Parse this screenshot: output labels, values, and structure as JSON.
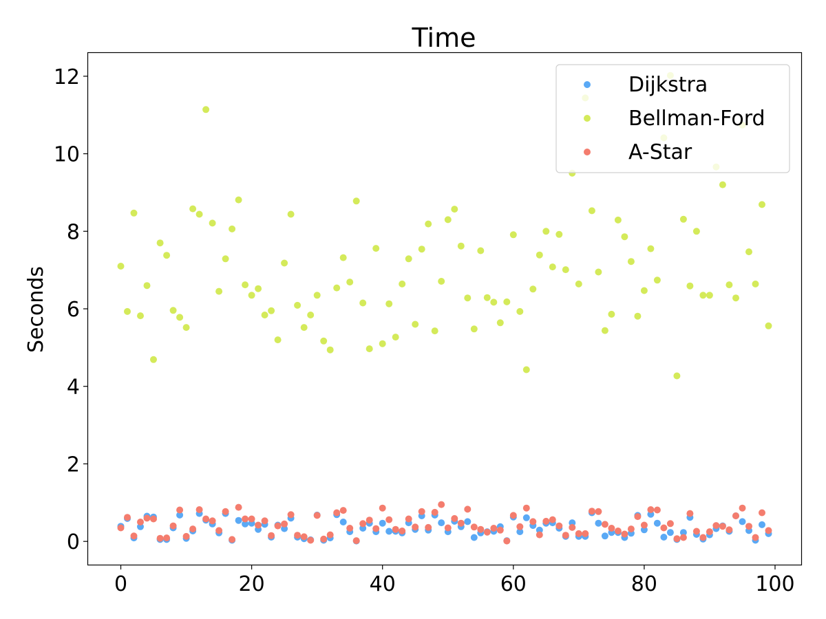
{
  "chart_data": {
    "type": "scatter",
    "title": "Time",
    "xlabel": "",
    "ylabel": "Seconds",
    "xlim": [
      -5.0,
      104.0
    ],
    "ylim": [
      -0.6,
      12.6
    ],
    "xticks": [
      0,
      20,
      40,
      60,
      80,
      100
    ],
    "yticks": [
      0,
      2,
      4,
      6,
      8,
      10,
      12
    ],
    "grid": false,
    "legend_position": "top-right",
    "x": [
      0,
      1,
      2,
      3,
      4,
      5,
      6,
      7,
      8,
      9,
      10,
      11,
      12,
      13,
      14,
      15,
      16,
      17,
      18,
      19,
      20,
      21,
      22,
      23,
      24,
      25,
      26,
      27,
      28,
      29,
      30,
      31,
      32,
      33,
      34,
      35,
      36,
      37,
      38,
      39,
      40,
      41,
      42,
      43,
      44,
      45,
      46,
      47,
      48,
      49,
      50,
      51,
      52,
      53,
      54,
      55,
      56,
      57,
      58,
      59,
      60,
      61,
      62,
      63,
      64,
      65,
      66,
      67,
      68,
      69,
      70,
      71,
      72,
      73,
      74,
      75,
      76,
      77,
      78,
      79,
      80,
      81,
      82,
      83,
      84,
      85,
      86,
      87,
      88,
      89,
      90,
      91,
      92,
      93,
      94,
      95,
      96,
      97,
      98,
      99
    ],
    "series": [
      {
        "name": "Dijkstra",
        "color": "#5aa9f5",
        "values": [
          0.39,
          0.59,
          0.09,
          0.38,
          0.65,
          0.63,
          0.05,
          0.05,
          0.35,
          0.68,
          0.08,
          0.27,
          0.72,
          0.55,
          0.45,
          0.22,
          0.72,
          0.03,
          0.54,
          0.45,
          0.47,
          0.31,
          0.44,
          0.11,
          0.42,
          0.33,
          0.6,
          0.11,
          0.07,
          0.04,
          0.68,
          0.03,
          0.09,
          0.69,
          0.5,
          0.25,
          0.01,
          0.34,
          0.47,
          0.25,
          0.47,
          0.26,
          0.26,
          0.22,
          0.48,
          0.31,
          0.66,
          0.29,
          0.68,
          0.48,
          0.25,
          0.52,
          0.38,
          0.51,
          0.1,
          0.22,
          0.25,
          0.26,
          0.38,
          0.02,
          0.63,
          0.25,
          0.61,
          0.41,
          0.29,
          0.47,
          0.48,
          0.34,
          0.13,
          0.48,
          0.13,
          0.13,
          0.74,
          0.47,
          0.14,
          0.23,
          0.23,
          0.1,
          0.21,
          0.67,
          0.3,
          0.7,
          0.47,
          0.11,
          0.23,
          0.05,
          0.23,
          0.62,
          0.18,
          0.06,
          0.17,
          0.33,
          0.4,
          0.26,
          0.66,
          0.51,
          0.28,
          0.03,
          0.43,
          0.2
        ]
      },
      {
        "name": "Bellman-Ford",
        "color": "#d4ea5a",
        "values": [
          7.1,
          5.93,
          8.47,
          5.82,
          6.6,
          4.69,
          7.7,
          7.38,
          5.96,
          5.78,
          5.52,
          8.58,
          8.44,
          11.14,
          8.21,
          6.45,
          7.29,
          8.06,
          8.81,
          6.62,
          6.35,
          6.52,
          5.84,
          5.95,
          5.2,
          7.18,
          8.44,
          6.09,
          5.52,
          5.84,
          6.35,
          5.17,
          4.94,
          6.54,
          7.32,
          6.69,
          8.78,
          6.15,
          4.97,
          7.56,
          5.1,
          6.13,
          5.27,
          6.64,
          7.29,
          5.6,
          7.54,
          8.19,
          5.43,
          6.71,
          8.3,
          8.57,
          7.62,
          6.28,
          5.48,
          7.5,
          6.29,
          6.17,
          5.64,
          6.18,
          7.91,
          5.93,
          4.43,
          6.51,
          7.39,
          8.0,
          7.08,
          7.92,
          7.01,
          9.5,
          6.64,
          11.44,
          8.53,
          6.95,
          5.44,
          5.86,
          8.29,
          7.86,
          7.22,
          5.81,
          6.47,
          7.55,
          6.74,
          10.41,
          12.02,
          4.27,
          8.31,
          6.59,
          8.0,
          6.35,
          6.35,
          9.66,
          9.2,
          6.62,
          6.28,
          10.74,
          7.47,
          6.64,
          8.69,
          5.56
        ]
      },
      {
        "name": "A-Star",
        "color": "#f47d6e",
        "values": [
          0.35,
          0.62,
          0.14,
          0.5,
          0.6,
          0.58,
          0.08,
          0.09,
          0.4,
          0.81,
          0.13,
          0.32,
          0.82,
          0.58,
          0.53,
          0.28,
          0.77,
          0.05,
          0.88,
          0.58,
          0.58,
          0.42,
          0.53,
          0.15,
          0.4,
          0.45,
          0.69,
          0.16,
          0.12,
          0.03,
          0.67,
          0.06,
          0.17,
          0.74,
          0.8,
          0.34,
          0.02,
          0.46,
          0.55,
          0.33,
          0.86,
          0.56,
          0.31,
          0.27,
          0.58,
          0.37,
          0.77,
          0.36,
          0.75,
          0.95,
          0.35,
          0.59,
          0.47,
          0.83,
          0.37,
          0.31,
          0.24,
          0.34,
          0.29,
          0.01,
          0.67,
          0.38,
          0.86,
          0.51,
          0.17,
          0.52,
          0.56,
          0.4,
          0.16,
          0.36,
          0.2,
          0.2,
          0.78,
          0.77,
          0.44,
          0.34,
          0.27,
          0.19,
          0.32,
          0.64,
          0.42,
          0.82,
          0.81,
          0.35,
          0.46,
          0.07,
          0.1,
          0.72,
          0.26,
          0.1,
          0.25,
          0.41,
          0.39,
          0.3,
          0.66,
          0.86,
          0.39,
          0.1,
          0.74,
          0.28
        ]
      }
    ]
  }
}
